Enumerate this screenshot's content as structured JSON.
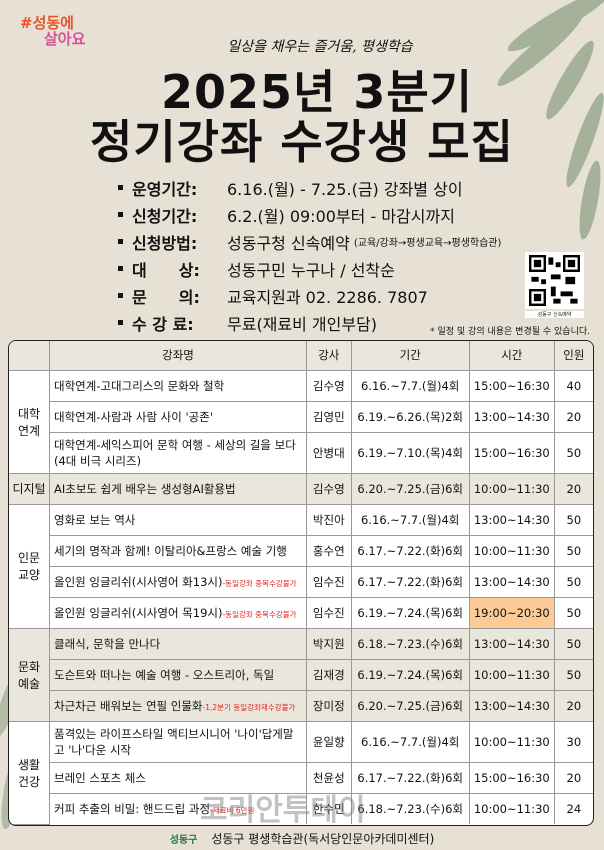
{
  "logo": {
    "line1": "#성동에",
    "line2": "살아요"
  },
  "subtitle": "일상을 채우는 즐거움, 평생학습",
  "title": {
    "line1": "2025년 3분기",
    "line2": "정기강좌 수강생 모집"
  },
  "info": [
    {
      "label": "운영기간:",
      "value": "6.16.(월) - 7.25.(금) 강좌별 상이",
      "note": ""
    },
    {
      "label": "신청기간:",
      "value": "6.2.(월) 09:00부터 - 마감시까지",
      "note": ""
    },
    {
      "label": "신청방법:",
      "value": "성동구청 신속예약",
      "note": "(교육/강좌→평생교육→평생학습관)"
    },
    {
      "label": "대　　상:",
      "value": "성동구민 누구나 / 선착순",
      "note": ""
    },
    {
      "label": "문　　의:",
      "value": "교육지원과 02. 2286. 7807",
      "note": ""
    },
    {
      "label": "수 강 료:",
      "value": "무료(재료비 개인부담)",
      "note": ""
    }
  ],
  "qr_caption": "성동구 신속예약",
  "notice": "* 일정 및 강의 내용은 변경될 수 있습니다.",
  "table": {
    "headers": [
      "",
      "강좌명",
      "강사",
      "기간",
      "시간",
      "인원"
    ],
    "rows": [
      {
        "cat": "대학\n연계",
        "span": 3,
        "name": "대학연계-고대그리스의 문화와 철학",
        "note": "",
        "teacher": "김수영",
        "period": "6.16.~7.7.(월)4회",
        "time": "15:00~16:30",
        "cap": "40"
      },
      {
        "name": "대학연계-사람과 사람 사이 '공존'",
        "note": "",
        "teacher": "김영민",
        "period": "6.19.~6.26.(목)2회",
        "time": "13:00~14:30",
        "cap": "20"
      },
      {
        "name": "대학연계-세익스피어 문학 여행 - 세상의 길을 보다 (4대 비극 시리즈)",
        "note": "",
        "teacher": "안병대",
        "period": "6.19.~7.10.(목)4회",
        "time": "15:00~16:30",
        "cap": "50"
      },
      {
        "cat": "디지털",
        "span": 1,
        "beige": true,
        "name": "AI초보도 쉽게 배우는 생성형AI활용법",
        "note": "",
        "teacher": "김수영",
        "period": "6.20.~7.25.(금)6회",
        "time": "10:00~11:30",
        "cap": "20"
      },
      {
        "cat": "인문\n교양",
        "span": 4,
        "name": "영화로 보는 역사",
        "note": "",
        "teacher": "박진아",
        "period": "6.16.~7.7.(월)4회",
        "time": "13:00~14:30",
        "cap": "50"
      },
      {
        "name": "세기의 명작과 함께! 이탈리아&프랑스 예술 기행",
        "note": "",
        "teacher": "홍수연",
        "period": "6.17.~7.22.(화)6회",
        "time": "10:00~11:30",
        "cap": "50"
      },
      {
        "name": "올인원 잉글리쉬(시사영어 화13시)",
        "note": "-동일강좌 중복수강불가",
        "teacher": "임수진",
        "period": "6.17.~7.22.(화)6회",
        "time": "13:00~14:30",
        "cap": "50"
      },
      {
        "name": "올인원 잉글리쉬(시사영어 목19시)",
        "note": "-동일강좌 중복수강불가",
        "teacher": "임수진",
        "period": "6.19.~7.24.(목)6회",
        "time": "19:00~20:30",
        "cap": "50",
        "highlight": true
      },
      {
        "cat": "문화\n예술",
        "span": 3,
        "beige": true,
        "name": "클래식, 문학을 만나다",
        "note": "",
        "teacher": "박지원",
        "period": "6.18.~7.23.(수)6회",
        "time": "13:00~14:30",
        "cap": "50"
      },
      {
        "beige": true,
        "name": "도슨트와 떠나는 예술 여행 - 오스트리아, 독일",
        "note": "",
        "teacher": "김재경",
        "period": "6.19.~7.24.(목)6회",
        "time": "10:00~11:30",
        "cap": "50"
      },
      {
        "beige": true,
        "name": "차근차근 배워보는 연필 인물화",
        "note": "-1,2분기 동일강좌재수강불가",
        "teacher": "장미정",
        "period": "6.20.~7.25.(금)6회",
        "time": "13:00~14:30",
        "cap": "20"
      },
      {
        "cat": "생활\n건강",
        "span": 3,
        "name": "품격있는 라이프스타일 액티브시니어 '나이'답게말고 '나'다운 시작",
        "note": "",
        "teacher": "윤일향",
        "period": "6.16.~7.7.(월)4회",
        "time": "10:00~11:30",
        "cap": "30"
      },
      {
        "name": "브레인 스포츠 체스",
        "note": "",
        "teacher": "천윤성",
        "period": "6.17.~7.22.(화)6회",
        "time": "15:00~16:30",
        "cap": "20"
      },
      {
        "name": "커피 추출의 비밀: 핸드드립 과정",
        "note": "-재료비 6만원",
        "teacher": "한수민",
        "period": "6.18.~7.23.(수)6회",
        "time": "10:00~11:30",
        "cap": "24"
      }
    ]
  },
  "footer": {
    "logo": "성동구",
    "text": "성동구 평생학습관(독서당인문아카데미센터)"
  },
  "watermark": "코리안투데이",
  "colors": {
    "background": "#e7e1d5",
    "leaf": "#8fa386",
    "highlight": "#fccb95",
    "note_red": "#e0241f"
  }
}
